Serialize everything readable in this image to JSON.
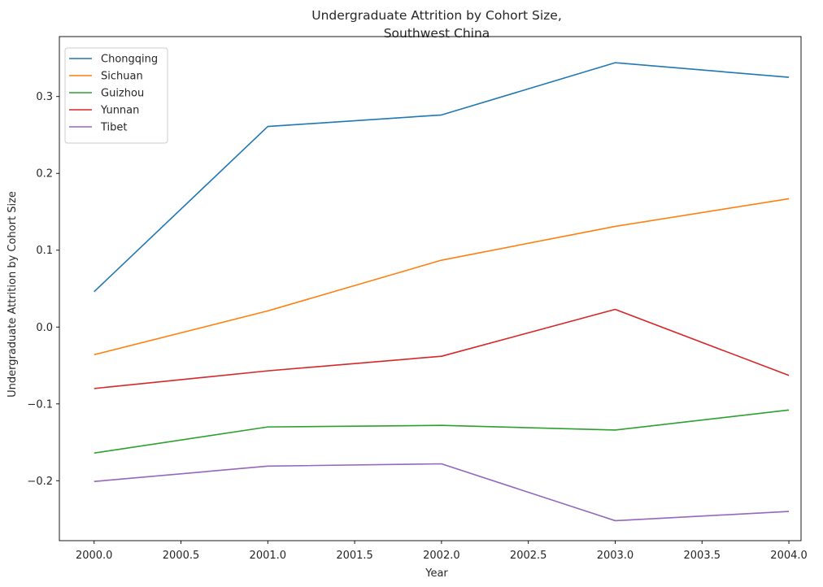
{
  "chart_data": {
    "type": "line",
    "title_lines": [
      "Undergraduate Attrition by Cohort Size,",
      "Southwest China"
    ],
    "xlabel": "Year",
    "ylabel": "Undergraduate Attrition by Cohort Size",
    "x": [
      2000,
      2001,
      2002,
      2003,
      2004
    ],
    "xlim": [
      1999.8,
      2004.07
    ],
    "ylim": [
      -0.278,
      0.378
    ],
    "xticks": [
      2000.0,
      2000.5,
      2001.0,
      2001.5,
      2002.0,
      2002.5,
      2003.0,
      2003.5,
      2004.0
    ],
    "xtick_labels": [
      "2000.0",
      "2000.5",
      "2001.0",
      "2001.5",
      "2002.0",
      "2002.5",
      "2003.0",
      "2003.5",
      "2004.0"
    ],
    "yticks": [
      -0.2,
      -0.1,
      0.0,
      0.1,
      0.2,
      0.3
    ],
    "ytick_labels": [
      "−0.2",
      "−0.1",
      "0.0",
      "0.1",
      "0.2",
      "0.3"
    ],
    "grid": false,
    "legend_position": "top-left",
    "series": [
      {
        "name": "Chongqing",
        "color": "#1f77b4",
        "values": [
          0.046,
          0.261,
          0.276,
          0.344,
          0.325
        ]
      },
      {
        "name": "Sichuan",
        "color": "#ff7f0e",
        "values": [
          -0.036,
          0.021,
          0.087,
          0.131,
          0.167
        ]
      },
      {
        "name": "Guizhou",
        "color": "#2ca02c",
        "values": [
          -0.164,
          -0.13,
          -0.128,
          -0.134,
          -0.108
        ]
      },
      {
        "name": "Yunnan",
        "color": "#d62728",
        "values": [
          -0.08,
          -0.057,
          -0.038,
          0.023,
          -0.063
        ]
      },
      {
        "name": "Tibet",
        "color": "#9467bd",
        "values": [
          -0.201,
          -0.181,
          -0.178,
          -0.252,
          -0.24
        ]
      }
    ]
  }
}
